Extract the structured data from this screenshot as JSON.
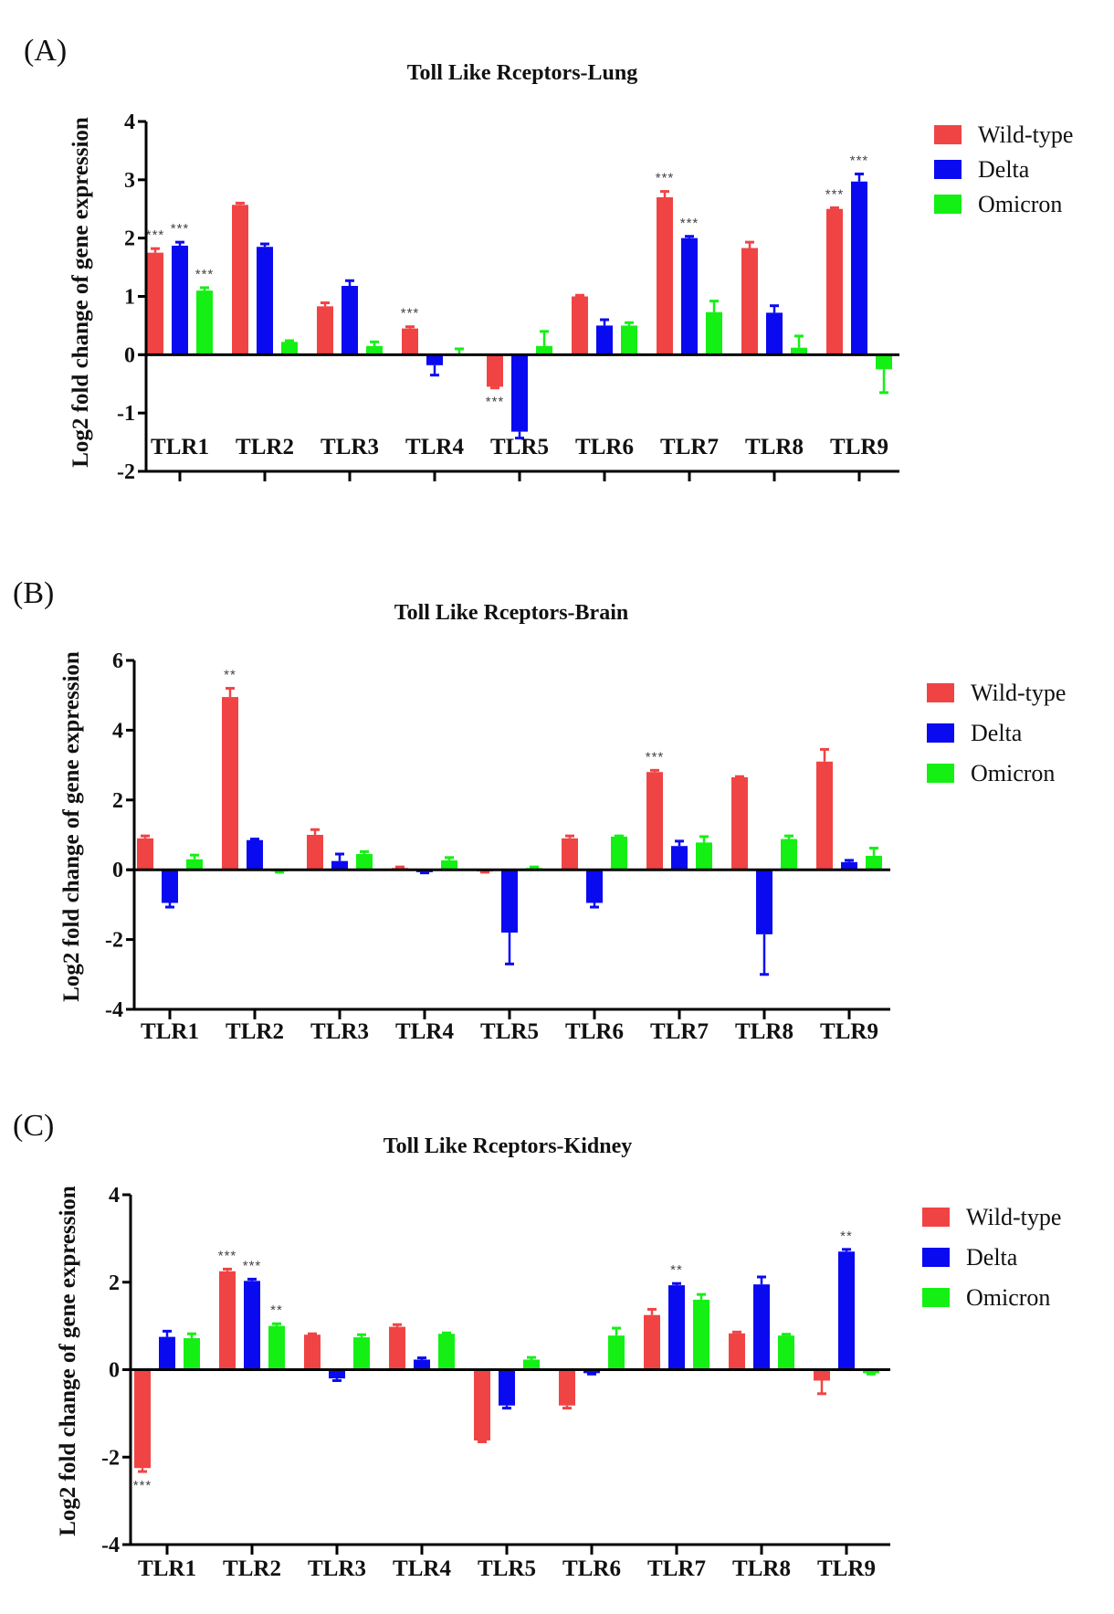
{
  "chart_data": [
    {
      "panel": "(A)",
      "type": "bar",
      "title": "Toll Like Rceptors-Lung",
      "xlabel": "",
      "ylabel": "Log2 fold change of gene expression",
      "ylim": [
        -2,
        4
      ],
      "yticks": [
        -2,
        -1,
        0,
        1,
        2,
        3,
        4
      ],
      "grid": false,
      "legend": "right",
      "categories": [
        "TLR1",
        "TLR2",
        "TLR3",
        "TLR4",
        "TLR5",
        "TLR6",
        "TLR7",
        "TLR8",
        "TLR9"
      ],
      "series": [
        {
          "name": "Wild-type",
          "color": "#F04444",
          "values": [
            1.75,
            2.57,
            0.83,
            0.45,
            -0.55,
            1.0,
            2.7,
            1.83,
            2.5
          ],
          "error_ends": [
            1.82,
            2.6,
            0.89,
            0.48,
            -0.57,
            1.02,
            2.8,
            1.93,
            2.52
          ],
          "significance": [
            "***",
            "",
            "",
            "***",
            "***",
            "",
            "***",
            "",
            "***"
          ]
        },
        {
          "name": "Delta",
          "color": "#0A0AF0",
          "values": [
            1.87,
            1.85,
            1.18,
            -0.18,
            -1.32,
            0.5,
            2.0,
            0.72,
            2.97
          ],
          "error_ends": [
            1.93,
            1.9,
            1.27,
            -0.35,
            -1.43,
            0.6,
            2.03,
            0.84,
            3.1
          ],
          "significance": [
            "***",
            "",
            "",
            "",
            "",
            "",
            "***",
            "",
            "***"
          ]
        },
        {
          "name": "Omicron",
          "color": "#14F014",
          "values": [
            1.1,
            0.22,
            0.15,
            0.0,
            0.15,
            0.5,
            0.73,
            0.12,
            -0.25
          ],
          "error_ends": [
            1.15,
            0.24,
            0.22,
            0.1,
            0.4,
            0.55,
            0.92,
            0.32,
            -0.65
          ],
          "significance": [
            "***",
            "",
            "",
            "",
            "",
            "",
            "",
            "",
            ""
          ]
        }
      ]
    },
    {
      "panel": "(B)",
      "type": "bar",
      "title": "Toll Like Rceptors-Brain",
      "xlabel": "",
      "ylabel": "Log2 fold change of gene expression",
      "ylim": [
        -4,
        6
      ],
      "yticks": [
        -4,
        -2,
        0,
        2,
        4,
        6
      ],
      "grid": false,
      "legend": "right",
      "categories": [
        "TLR1",
        "TLR2",
        "TLR3",
        "TLR4",
        "TLR5",
        "TLR6",
        "TLR7",
        "TLR8",
        "TLR9"
      ],
      "series": [
        {
          "name": "Wild-type",
          "color": "#F04444",
          "values": [
            0.9,
            4.95,
            1.0,
            0.05,
            -0.05,
            0.9,
            2.8,
            2.65,
            3.1
          ],
          "error_ends": [
            0.97,
            5.2,
            1.15,
            0.08,
            -0.07,
            0.97,
            2.85,
            2.67,
            3.45
          ],
          "significance": [
            "",
            "**",
            "",
            "",
            "",
            "",
            "***",
            "",
            ""
          ]
        },
        {
          "name": "Delta",
          "color": "#0A0AF0",
          "values": [
            -0.95,
            0.85,
            0.25,
            -0.07,
            -1.8,
            -0.95,
            0.68,
            -1.85,
            0.22
          ],
          "error_ends": [
            -1.07,
            0.88,
            0.45,
            -0.09,
            -2.7,
            -1.07,
            0.82,
            -3.0,
            0.27
          ],
          "significance": [
            "",
            "",
            "",
            "",
            "",
            "",
            "",
            "",
            ""
          ]
        },
        {
          "name": "Omicron",
          "color": "#14F014",
          "values": [
            0.3,
            -0.05,
            0.45,
            0.27,
            0.05,
            0.95,
            0.78,
            0.88,
            0.4
          ],
          "error_ends": [
            0.42,
            -0.07,
            0.52,
            0.35,
            0.08,
            0.97,
            0.95,
            0.97,
            0.62
          ],
          "significance": [
            "",
            "",
            "",
            "",
            "",
            "",
            "",
            "",
            ""
          ]
        }
      ]
    },
    {
      "panel": "(C)",
      "type": "bar",
      "title": "Toll Like Rceptors-Kidney",
      "xlabel": "",
      "ylabel": "Log2 fold change of gene expression",
      "ylim": [
        -4,
        4
      ],
      "yticks": [
        -4,
        -2,
        0,
        2,
        4
      ],
      "grid": false,
      "legend": "right",
      "categories": [
        "TLR1",
        "TLR2",
        "TLR3",
        "TLR4",
        "TLR5",
        "TLR6",
        "TLR7",
        "TLR8",
        "TLR9"
      ],
      "series": [
        {
          "name": "Wild-type",
          "color": "#F04444",
          "values": [
            -2.25,
            2.25,
            0.8,
            0.98,
            -1.62,
            -0.82,
            1.25,
            0.83,
            -0.25
          ],
          "error_ends": [
            -2.33,
            2.3,
            0.82,
            1.03,
            -1.65,
            -0.88,
            1.38,
            0.86,
            -0.55
          ],
          "significance": [
            "***",
            "***",
            "",
            "",
            "",
            "",
            "",
            "",
            ""
          ]
        },
        {
          "name": "Delta",
          "color": "#0A0AF0",
          "values": [
            0.75,
            2.03,
            -0.2,
            0.23,
            -0.82,
            -0.08,
            1.93,
            1.95,
            2.7
          ],
          "error_ends": [
            0.88,
            2.07,
            -0.25,
            0.27,
            -0.88,
            -0.1,
            1.97,
            2.12,
            2.75
          ],
          "significance": [
            "",
            "***",
            "",
            "",
            "",
            "",
            "**",
            "",
            "**"
          ]
        },
        {
          "name": "Omicron",
          "color": "#14F014",
          "values": [
            0.72,
            1.0,
            0.74,
            0.82,
            0.23,
            0.78,
            1.6,
            0.78,
            -0.08
          ],
          "error_ends": [
            0.82,
            1.05,
            0.8,
            0.84,
            0.28,
            0.95,
            1.72,
            0.81,
            -0.1
          ],
          "significance": [
            "",
            "**",
            "",
            "",
            "",
            "",
            "",
            "",
            ""
          ]
        }
      ]
    }
  ]
}
